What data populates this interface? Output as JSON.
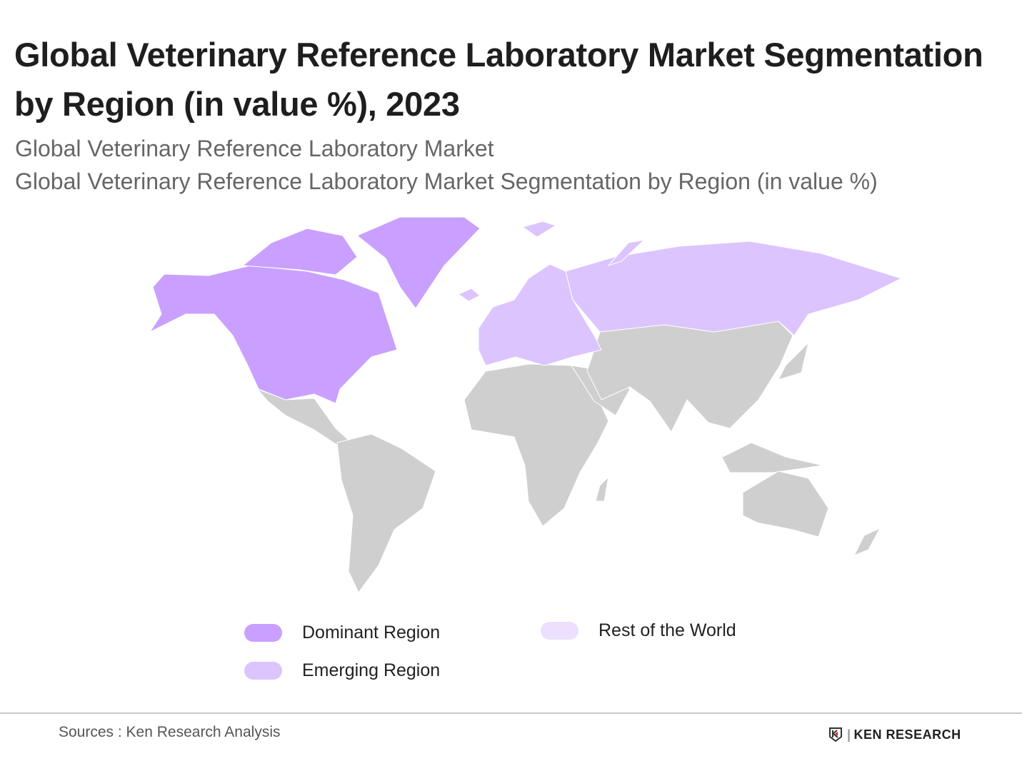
{
  "header": {
    "title": "Global Veterinary Reference Laboratory Market Segmentation by Region (in value %), 2023",
    "subtitle_1": "Global Veterinary Reference Laboratory Market",
    "subtitle_2": "Global Veterinary Reference Laboratory Market Segmentation by Region (in value %)"
  },
  "map": {
    "colors": {
      "dominant": "#c9a0ff",
      "emerging": "#dcc4ff",
      "rest": "#ecdfff",
      "other_land": "#cfcfcf",
      "borders": "#ffffff"
    },
    "regions": {
      "dominant": [
        "North America"
      ],
      "emerging": [
        "Europe",
        "Russia"
      ],
      "unshaded": [
        "Latin America",
        "Africa",
        "Middle East",
        "Asia",
        "Oceania"
      ]
    }
  },
  "legend": {
    "items": [
      {
        "label": "Dominant Region",
        "color": "#c9a0ff"
      },
      {
        "label": "Emerging Region",
        "color": "#dcc4ff"
      },
      {
        "label": "Rest of the World",
        "color": "#ecdfff"
      }
    ]
  },
  "footer": {
    "source": "Sources : Ken Research Analysis",
    "logo_text": "KEN RESEARCH"
  }
}
